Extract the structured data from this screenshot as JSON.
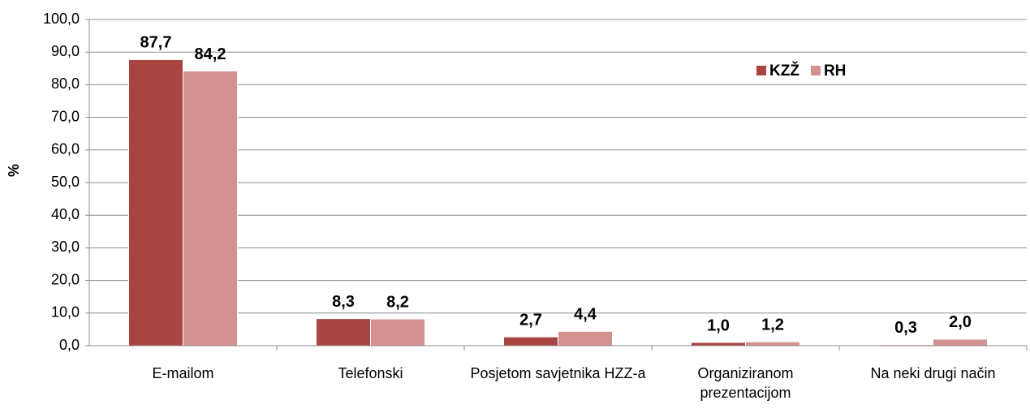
{
  "chart_data": {
    "type": "bar",
    "y_label": "%",
    "categories": [
      "E-mailom",
      "Telefonski",
      "Posjetom savjetnika HZZ-a",
      "Organiziranom prezentacijom",
      "Na neki drugi način"
    ],
    "series": [
      {
        "name": "KZŽ",
        "color": "#a84543",
        "values": [
          87.7,
          8.3,
          2.7,
          1.0,
          0.3
        ],
        "value_labels": [
          "87,7",
          "8,3",
          "2,7",
          "1,0",
          "0,3"
        ]
      },
      {
        "name": "RH",
        "color": "#d39190",
        "values": [
          84.2,
          8.2,
          4.4,
          1.2,
          2.0
        ],
        "value_labels": [
          "84,2",
          "8,2",
          "4,4",
          "1,2",
          "2,0"
        ]
      }
    ],
    "ylim": [
      0,
      100
    ],
    "yticks": [
      {
        "value": 0,
        "label": "0,0"
      },
      {
        "value": 10,
        "label": "10,0"
      },
      {
        "value": 20,
        "label": "20,0"
      },
      {
        "value": 30,
        "label": "30,0"
      },
      {
        "value": 40,
        "label": "40,0"
      },
      {
        "value": 50,
        "label": "50,0"
      },
      {
        "value": 60,
        "label": "60,0"
      },
      {
        "value": 70,
        "label": "70,0"
      },
      {
        "value": 80,
        "label": "80,0"
      },
      {
        "value": 90,
        "label": "90,0"
      },
      {
        "value": 100,
        "label": "100,0"
      }
    ],
    "grid": true,
    "legend": "upper right"
  }
}
